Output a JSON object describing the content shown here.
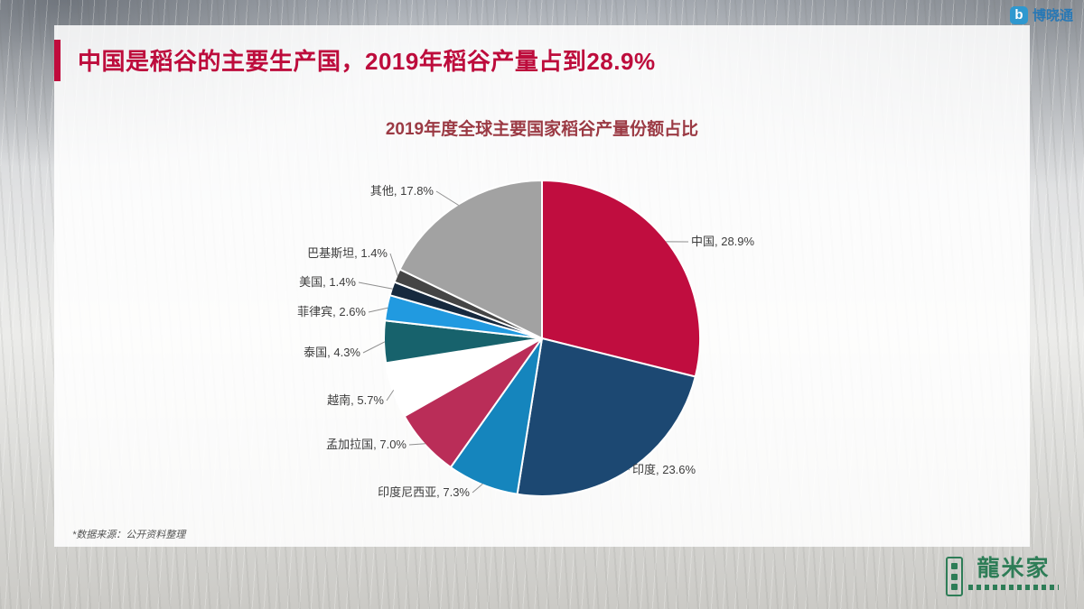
{
  "slide": {
    "title": "中国是稻谷的主要生产国，2019年稻谷产量占到28.9%",
    "footnote": "*数据来源：公开资料整理"
  },
  "logos": {
    "top_right_text": "博晓通",
    "top_right_icon_letter": "b",
    "bottom_right_text": "龍米家"
  },
  "chart_data": {
    "type": "pie",
    "title": "2019年度全球主要国家稻谷产量份额占比",
    "legend_position": "none",
    "label_format": "name, value%",
    "start_angle_deg": 0,
    "direction": "clockwise",
    "slices": [
      {
        "label": "中国",
        "value": 28.9,
        "color": "#c00d3f"
      },
      {
        "label": "印度",
        "value": 23.6,
        "color": "#1c4872"
      },
      {
        "label": "印度尼西亚",
        "value": 7.3,
        "color": "#1585bd"
      },
      {
        "label": "孟加拉国",
        "value": 7.0,
        "color": "#ba2d58"
      },
      {
        "label": "越南",
        "value": 5.7,
        "color": "#ffffff"
      },
      {
        "label": "泰国",
        "value": 4.3,
        "color": "#17626c"
      },
      {
        "label": "菲律宾",
        "value": 2.6,
        "color": "#219ae0"
      },
      {
        "label": "美国",
        "value": 1.4,
        "color": "#16293e"
      },
      {
        "label": "巴基斯坦",
        "value": 1.4,
        "color": "#454545"
      },
      {
        "label": "其他",
        "value": 17.8,
        "color": "#a2a2a2"
      }
    ]
  }
}
